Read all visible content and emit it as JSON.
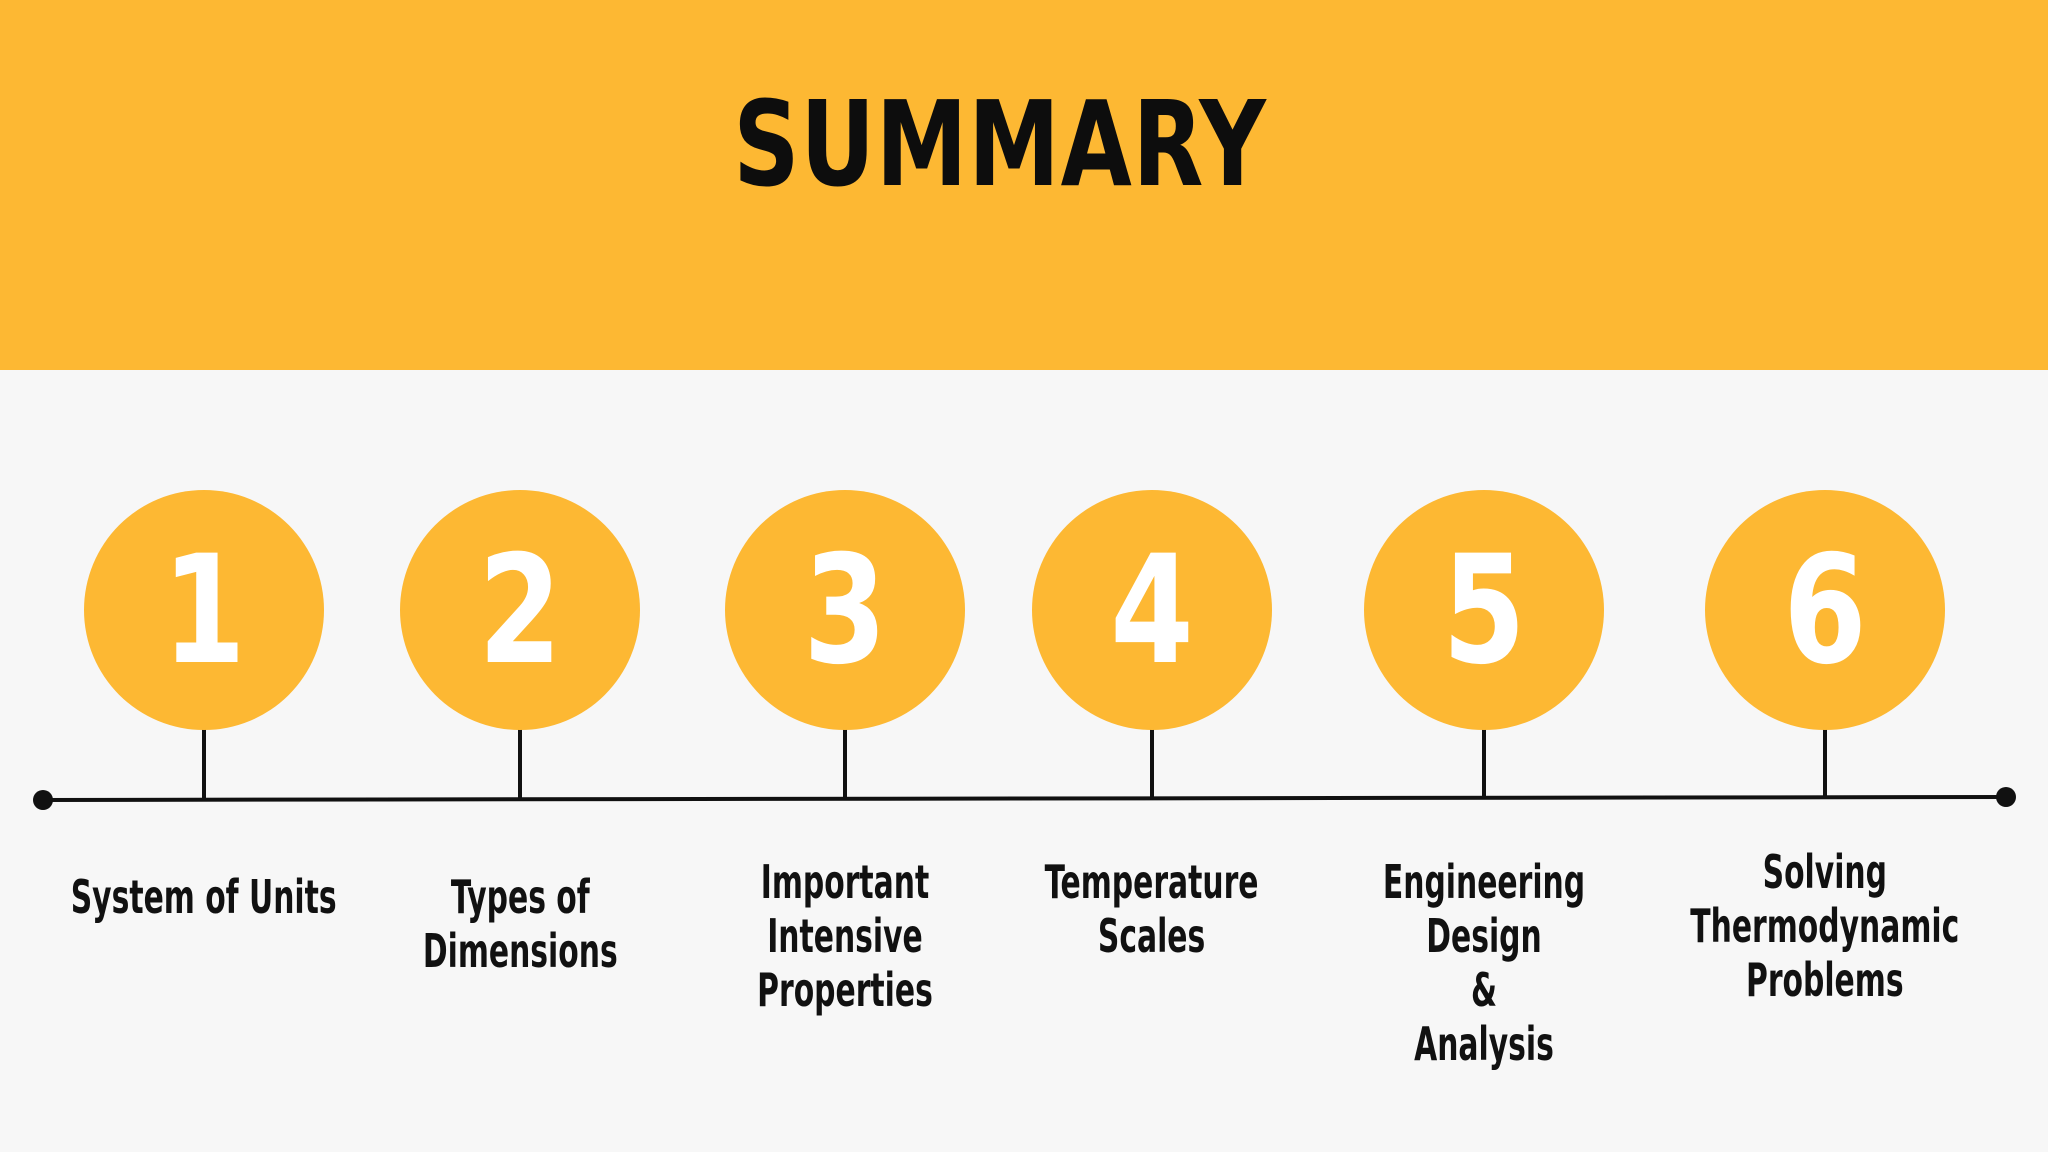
{
  "slide": {
    "title": "SUMMARY",
    "colors": {
      "accent": "#fdb833",
      "background": "#f7f7f7",
      "line": "#111111",
      "number": "#ffffff"
    }
  },
  "steps": [
    {
      "number": "1",
      "label": "System of Units"
    },
    {
      "number": "2",
      "label": "Types of\nDimensions"
    },
    {
      "number": "3",
      "label": "Important\nIntensive\nProperties"
    },
    {
      "number": "4",
      "label": "Temperature\nScales"
    },
    {
      "number": "5",
      "label": "Engineering Design\n&\nAnalysis"
    },
    {
      "number": "6",
      "label": "Solving\nThermodynamic\nProblems"
    }
  ]
}
